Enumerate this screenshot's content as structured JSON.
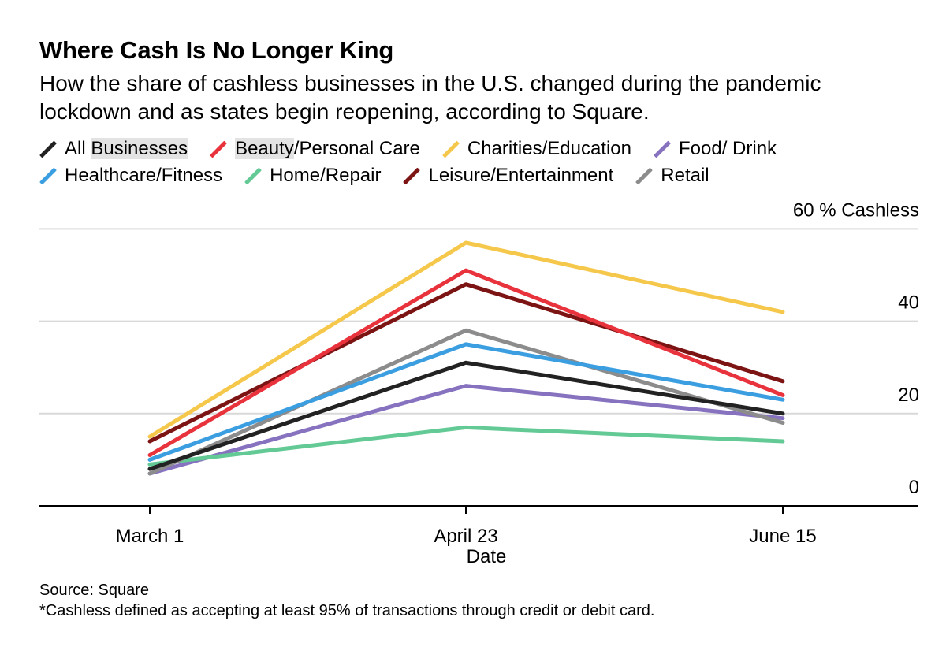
{
  "header": {
    "title": "Where Cash Is No Longer King",
    "subtitle": "How the share of cashless businesses in the U.S. changed during the pandemic lockdown and as states begin reopening, according to Square."
  },
  "legend": {
    "rows": [
      [
        {
          "pre": "All ",
          "hl": "Businesses",
          "post": "",
          "color": "#222222"
        },
        {
          "pre": "",
          "hl": "Beauty",
          "post": "/Personal Care",
          "color": "#e8323c"
        },
        {
          "pre": "Charities/Education",
          "hl": "",
          "post": "",
          "color": "#f5c84c"
        },
        {
          "pre": "Food/ Drink",
          "hl": "",
          "post": "",
          "color": "#8672bf"
        }
      ],
      [
        {
          "pre": "Healthcare/Fitness",
          "hl": "",
          "post": "",
          "color": "#3a9ee0"
        },
        {
          "pre": "Home/Repair",
          "hl": "",
          "post": "",
          "color": "#63c995"
        },
        {
          "pre": "Leisure/Entertainment",
          "hl": "",
          "post": "",
          "color": "#7d1414"
        },
        {
          "pre": "Retail",
          "hl": "",
          "post": "",
          "color": "#8c8c8c"
        }
      ]
    ]
  },
  "chart_data": {
    "type": "line",
    "title": "Where Cash Is No Longer King",
    "xlabel": "Date",
    "ylabel": "% Cashless",
    "categories": [
      "March 1",
      "April 23",
      "June 15"
    ],
    "ylim": [
      0,
      60
    ],
    "yticks": [
      0,
      20,
      40,
      60
    ],
    "ytick_labels": [
      "0",
      "20",
      "40",
      "60 % Cashless"
    ],
    "grid": true,
    "series": [
      {
        "name": "Food/ Drink",
        "color": "#8672bf",
        "values": [
          7,
          26,
          19
        ]
      },
      {
        "name": "Home/Repair",
        "color": "#63c995",
        "values": [
          9,
          17,
          14
        ]
      },
      {
        "name": "Retail",
        "color": "#8c8c8c",
        "values": [
          7,
          38,
          18
        ]
      },
      {
        "name": "Healthcare/Fitness",
        "color": "#3a9ee0",
        "values": [
          10,
          35,
          23
        ]
      },
      {
        "name": "All Businesses",
        "color": "#222222",
        "values": [
          8,
          31,
          20
        ]
      },
      {
        "name": "Leisure/Entertainment",
        "color": "#7d1414",
        "values": [
          14,
          48,
          27
        ]
      },
      {
        "name": "Beauty/Personal Care",
        "color": "#e8323c",
        "values": [
          11,
          51,
          24
        ]
      },
      {
        "name": "Charities/Education",
        "color": "#f5c84c",
        "values": [
          15,
          57,
          42
        ]
      }
    ]
  },
  "footer": {
    "source": "Source: Square",
    "note": "*Cashless defined as accepting at least 95% of transactions through credit or debit card."
  }
}
